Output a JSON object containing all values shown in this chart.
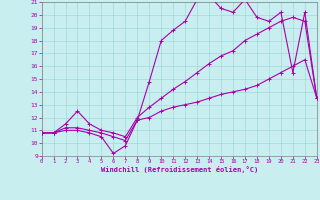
{
  "xlabel": "Windchill (Refroidissement éolien,°C)",
  "background_color": "#c8eef0",
  "grid_color": "#a0d8dc",
  "line_color": "#aa00aa",
  "xlim": [
    0,
    23
  ],
  "ylim": [
    9,
    21
  ],
  "xticks": [
    0,
    1,
    2,
    3,
    4,
    5,
    6,
    7,
    8,
    9,
    10,
    11,
    12,
    13,
    14,
    15,
    16,
    17,
    18,
    19,
    20,
    21,
    22,
    23
  ],
  "yticks": [
    9,
    10,
    11,
    12,
    13,
    14,
    15,
    16,
    17,
    18,
    19,
    20,
    21
  ],
  "line1_x": [
    0,
    1,
    2,
    3,
    4,
    5,
    6,
    7,
    8,
    9,
    10,
    11,
    12,
    13,
    14,
    15,
    16,
    17,
    18,
    19,
    20,
    21,
    22,
    23
  ],
  "line1_y": [
    10.8,
    10.8,
    11.0,
    11.0,
    10.8,
    10.5,
    9.2,
    9.8,
    11.8,
    14.8,
    18.0,
    18.8,
    19.5,
    21.2,
    21.5,
    20.5,
    20.2,
    21.2,
    19.8,
    19.5,
    20.2,
    15.5,
    20.2,
    13.5
  ],
  "line2_x": [
    0,
    1,
    2,
    3,
    4,
    5,
    6,
    7,
    8,
    9,
    10,
    11,
    12,
    13,
    14,
    15,
    16,
    17,
    18,
    19,
    20,
    21,
    22,
    23
  ],
  "line2_y": [
    10.8,
    10.8,
    11.2,
    11.2,
    11.0,
    10.8,
    10.5,
    10.2,
    11.8,
    12.0,
    12.5,
    12.8,
    13.0,
    13.2,
    13.5,
    13.8,
    14.0,
    14.2,
    14.5,
    15.0,
    15.5,
    16.0,
    16.5,
    13.5
  ],
  "line3_x": [
    0,
    1,
    2,
    3,
    4,
    5,
    6,
    7,
    8,
    9,
    10,
    11,
    12,
    13,
    14,
    15,
    16,
    17,
    18,
    19,
    20,
    21,
    22,
    23
  ],
  "line3_y": [
    10.8,
    10.8,
    11.5,
    12.5,
    11.5,
    11.0,
    10.8,
    10.5,
    12.0,
    12.8,
    13.5,
    14.2,
    14.8,
    15.5,
    16.2,
    16.8,
    17.2,
    18.0,
    18.5,
    19.0,
    19.5,
    19.8,
    19.5,
    13.5
  ]
}
